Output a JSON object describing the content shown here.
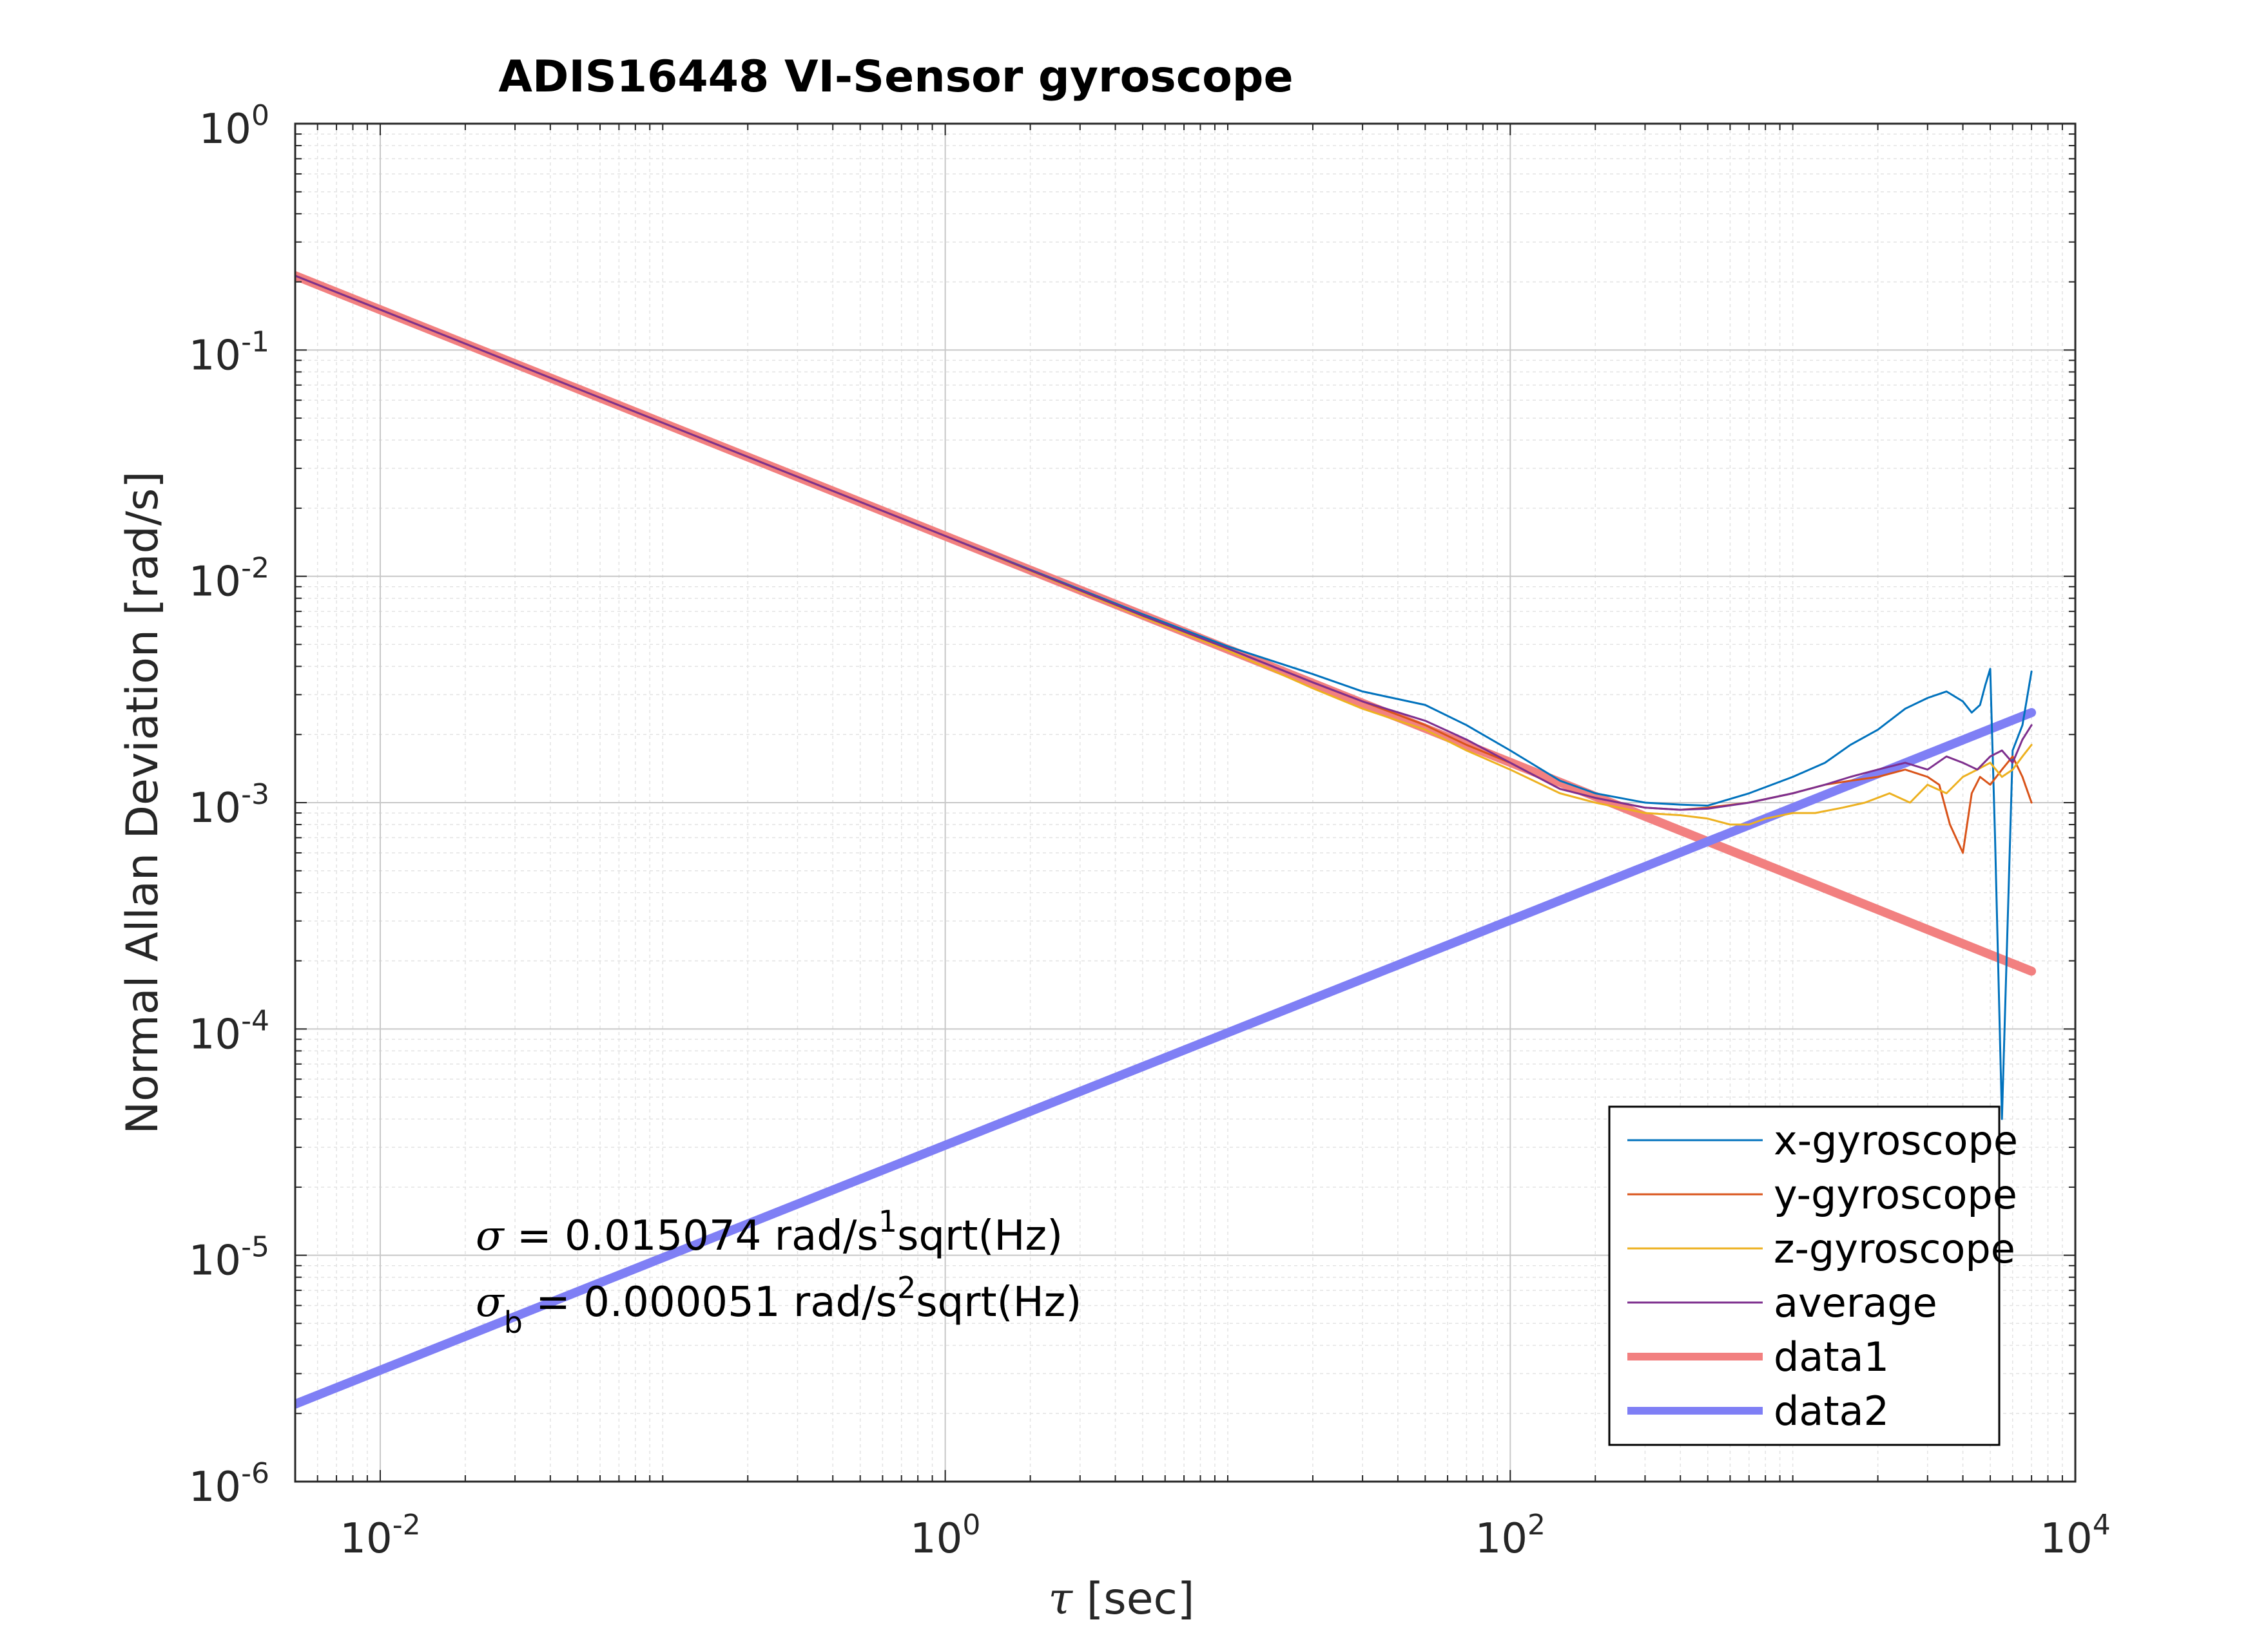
{
  "chart_data": {
    "type": "line",
    "title": "ADIS16448 VI-Sensor gyroscope",
    "xlabel_symbol": "τ",
    "xlabel_rest": " [sec]",
    "ylabel": "Normal Allan Deviation [rad/s]",
    "x_scale": "log",
    "y_scale": "log",
    "xlim": [
      0.005,
      10000
    ],
    "ylim": [
      1e-06,
      1
    ],
    "x_ticks": [
      {
        "value": 0.01,
        "base": "10",
        "exp": "-2"
      },
      {
        "value": 1,
        "base": "10",
        "exp": "0"
      },
      {
        "value": 100,
        "base": "10",
        "exp": "2"
      },
      {
        "value": 10000,
        "base": "10",
        "exp": "4"
      }
    ],
    "y_ticks": [
      {
        "value": 1,
        "base": "10",
        "exp": "0"
      },
      {
        "value": 0.1,
        "base": "10",
        "exp": "-1"
      },
      {
        "value": 0.01,
        "base": "10",
        "exp": "-2"
      },
      {
        "value": 0.001,
        "base": "10",
        "exp": "-3"
      },
      {
        "value": 0.0001,
        "base": "10",
        "exp": "-4"
      },
      {
        "value": 1e-05,
        "base": "10",
        "exp": "-5"
      },
      {
        "value": 1e-06,
        "base": "10",
        "exp": "-6"
      }
    ],
    "grid": true,
    "minor_grid": true,
    "legend_position": "bottom-right",
    "series": [
      {
        "name": "x-gyroscope",
        "color": "#0072BD",
        "width": 1,
        "x": [
          0.005,
          0.01,
          0.1,
          1,
          5,
          10,
          20,
          30,
          50,
          70,
          100,
          150,
          200,
          300,
          400,
          500,
          700,
          1000,
          1300,
          1600,
          2000,
          2500,
          3000,
          3500,
          4000,
          4300,
          4600,
          4800,
          5000,
          5200,
          5500,
          6000,
          6500,
          7000
        ],
        "y": [
          0.213,
          0.15074,
          0.047668,
          0.015074,
          0.0068,
          0.0049,
          0.0037,
          0.0031,
          0.0027,
          0.0022,
          0.0017,
          0.00125,
          0.0011,
          0.001,
          0.00098,
          0.00097,
          0.0011,
          0.0013,
          0.0015,
          0.0018,
          0.0021,
          0.0026,
          0.0029,
          0.0031,
          0.0028,
          0.0025,
          0.0027,
          0.0033,
          0.0039,
          0.0007,
          4e-05,
          0.0017,
          0.0022,
          0.0038
        ]
      },
      {
        "name": "y-gyroscope",
        "color": "#D95319",
        "width": 1,
        "x": [
          0.005,
          0.01,
          0.1,
          1,
          5,
          10,
          20,
          30,
          50,
          70,
          100,
          150,
          200,
          300,
          400,
          500,
          700,
          1000,
          1300,
          1600,
          2000,
          2500,
          3000,
          3300,
          3600,
          4000,
          4300,
          4600,
          5000,
          5500,
          6000,
          6500,
          7000
        ],
        "y": [
          0.213,
          0.15074,
          0.047668,
          0.015074,
          0.0067,
          0.0048,
          0.0034,
          0.0028,
          0.0022,
          0.0018,
          0.0015,
          0.00115,
          0.00105,
          0.00095,
          0.00093,
          0.00095,
          0.001,
          0.0011,
          0.0012,
          0.00125,
          0.0013,
          0.0014,
          0.0013,
          0.0012,
          0.0008,
          0.0006,
          0.0011,
          0.0013,
          0.0012,
          0.0014,
          0.0016,
          0.0013,
          0.001
        ]
      },
      {
        "name": "z-gyroscope",
        "color": "#EDB120",
        "width": 1,
        "x": [
          0.005,
          0.01,
          0.1,
          1,
          5,
          10,
          20,
          30,
          50,
          70,
          100,
          150,
          200,
          300,
          400,
          500,
          600,
          700,
          800,
          1000,
          1200,
          1500,
          1800,
          2200,
          2600,
          3000,
          3500,
          4000,
          4500,
          5000,
          5500,
          6000,
          6500,
          7000
        ],
        "y": [
          0.213,
          0.15074,
          0.047668,
          0.015074,
          0.0066,
          0.0047,
          0.0032,
          0.0026,
          0.0021,
          0.0017,
          0.0014,
          0.0011,
          0.001,
          0.0009,
          0.00088,
          0.00085,
          0.0008,
          0.0008,
          0.00085,
          0.0009,
          0.0009,
          0.00095,
          0.001,
          0.0011,
          0.001,
          0.0012,
          0.0011,
          0.0013,
          0.0014,
          0.0015,
          0.0013,
          0.0014,
          0.0016,
          0.0018
        ]
      },
      {
        "name": "average",
        "color": "#7E2F8E",
        "width": 1,
        "x": [
          0.005,
          0.01,
          0.1,
          1,
          5,
          10,
          20,
          30,
          50,
          70,
          100,
          150,
          200,
          300,
          400,
          500,
          700,
          1000,
          1300,
          1600,
          2000,
          2500,
          3000,
          3500,
          4000,
          4500,
          5000,
          5500,
          6000,
          6500,
          7000
        ],
        "y": [
          0.213,
          0.15074,
          0.047668,
          0.015074,
          0.0067,
          0.0048,
          0.0034,
          0.0028,
          0.0023,
          0.0019,
          0.0015,
          0.00115,
          0.00105,
          0.00095,
          0.00093,
          0.00094,
          0.001,
          0.0011,
          0.0012,
          0.0013,
          0.0014,
          0.0015,
          0.0014,
          0.0016,
          0.0015,
          0.0014,
          0.0016,
          0.0017,
          0.0015,
          0.0019,
          0.0022
        ]
      },
      {
        "name": "data1",
        "color": "#F28080",
        "width": 8,
        "x": [
          0.005,
          7000
        ],
        "y": [
          0.213,
          0.00018
        ]
      },
      {
        "name": "data2",
        "color": "#7F7FF5",
        "width": 8,
        "x": [
          0.005,
          7000
        ],
        "y": [
          2.2e-06,
          0.0025
        ]
      }
    ],
    "annotations": [
      {
        "symbol": "σ",
        "sub": "",
        "text1": " = 0.015074 rad/s",
        "sup": "1",
        "text2": "sqrt(Hz)"
      },
      {
        "symbol": "σ",
        "sub": "b",
        "text1": " = 0.000051 rad/s",
        "sup": "2",
        "text2": "sqrt(Hz)"
      }
    ]
  }
}
